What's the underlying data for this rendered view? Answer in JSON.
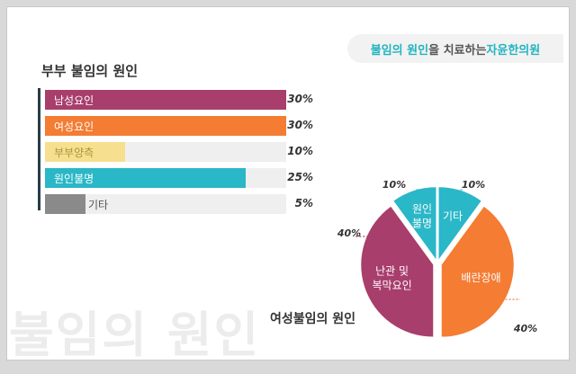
{
  "header": {
    "badge_part1": "불임의 원인",
    "badge_part2": "을 치료하는 ",
    "badge_part3": "자윤한의원"
  },
  "bar_section_title": "부부 불임의 원인",
  "watermark": "불임의 원인",
  "pie_section_title": "여성불임의 원인",
  "colors": {
    "male": "#a83e6c",
    "female": "#f47c33",
    "couple": "#f6df8e",
    "unknown": "#2ab7c7",
    "other": "#8a8a8a",
    "accent": "#1fb5bf"
  },
  "chart_data": [
    {
      "type": "bar",
      "title": "부부 불임의 원인",
      "categories": [
        "남성요인",
        "여성요인",
        "부부양측",
        "원인불명",
        "기타"
      ],
      "values": [
        30,
        30,
        10,
        25,
        5
      ],
      "value_labels": [
        "30%",
        "30%",
        "10%",
        "25%",
        "5%"
      ],
      "xlim": [
        0,
        30
      ],
      "orientation": "horizontal"
    },
    {
      "type": "pie",
      "title": "여성불임의 원인",
      "slices": [
        {
          "label": "기타",
          "value": 10,
          "value_label": "10%",
          "color": "#2ab7c7"
        },
        {
          "label": "배란장애",
          "value": 40,
          "value_label": "40%",
          "color": "#f47c33"
        },
        {
          "label": "난관 및 복막요인",
          "value": 40,
          "value_label": "40%",
          "color": "#a83e6c"
        },
        {
          "label": "원인 불명",
          "value": 10,
          "value_label": "10%",
          "color": "#2ab7c7"
        }
      ]
    }
  ]
}
